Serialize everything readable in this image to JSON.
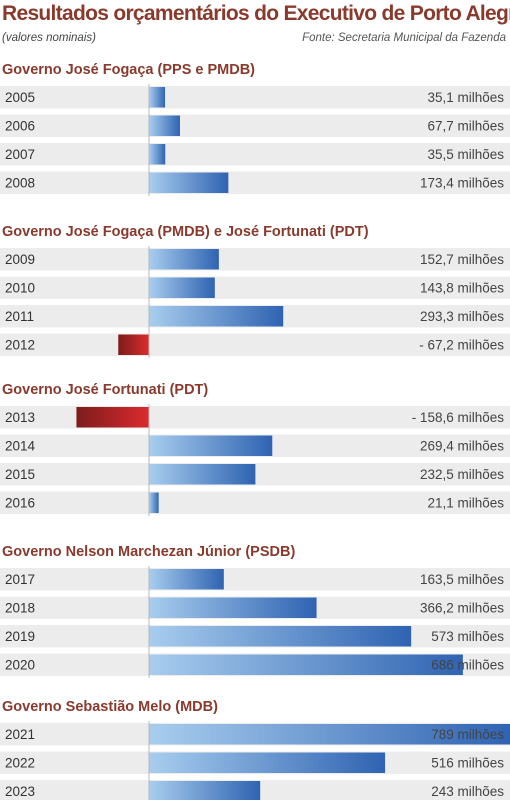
{
  "header": {
    "title": "Resultados orçamentários do Executivo de Porto Alegre",
    "subtitle": "(valores nominais)",
    "source": "Fonte: Secretaria Municipal da Fazenda"
  },
  "colors": {
    "title": "#8a3a2c",
    "row_band": "#ececec",
    "positive_light": "#a8cdee",
    "positive_dark": "#2f63b2",
    "negative_light": "#dc2b2e",
    "negative_dark": "#7c1c1c",
    "axis": "#b9b9b9"
  },
  "chart_data": {
    "type": "bar",
    "orientation": "horizontal",
    "unit": "milhões",
    "groups": [
      {
        "name": "Governo José Fogaça (PPS e PMDB)",
        "rows": [
          {
            "year": "2005",
            "value": 35.1,
            "label": "35,1 milhões"
          },
          {
            "year": "2006",
            "value": 67.7,
            "label": "67,7 milhões"
          },
          {
            "year": "2007",
            "value": 35.5,
            "label": "35,5 milhões"
          },
          {
            "year": "2008",
            "value": 173.4,
            "label": "173,4 milhões"
          }
        ]
      },
      {
        "name": "Governo José Fogaça (PMDB) e José Fortunati (PDT)",
        "rows": [
          {
            "year": "2009",
            "value": 152.7,
            "label": "152,7 milhões"
          },
          {
            "year": "2010",
            "value": 143.8,
            "label": "143,8 milhões"
          },
          {
            "year": "2011",
            "value": 293.3,
            "label": "293,3 milhões"
          },
          {
            "year": "2012",
            "value": -67.2,
            "label": "- 67,2 milhões"
          }
        ]
      },
      {
        "name": "Governo José Fortunati (PDT)",
        "rows": [
          {
            "year": "2013",
            "value": -158.6,
            "label": "- 158,6 milhões"
          },
          {
            "year": "2014",
            "value": 269.4,
            "label": "269,4 milhões"
          },
          {
            "year": "2015",
            "value": 232.5,
            "label": "232,5 milhões"
          },
          {
            "year": "2016",
            "value": 21.1,
            "label": "21,1 milhões"
          }
        ]
      },
      {
        "name": "Governo Nelson Marchezan Júnior (PSDB)",
        "rows": [
          {
            "year": "2017",
            "value": 163.5,
            "label": "163,5 milhões"
          },
          {
            "year": "2018",
            "value": 366.2,
            "label": "366,2 milhões"
          },
          {
            "year": "2019",
            "value": 573,
            "label": "573 milhões"
          },
          {
            "year": "2020",
            "value": 686,
            "label": "686 milhões"
          }
        ]
      },
      {
        "name": "Governo Sebastião Melo (MDB)",
        "rows": [
          {
            "year": "2021",
            "value": 789,
            "label": "789 milhões"
          },
          {
            "year": "2022",
            "value": 516,
            "label": "516 milhões"
          },
          {
            "year": "2023",
            "value": 243,
            "label": "243 milhões"
          }
        ]
      }
    ]
  }
}
